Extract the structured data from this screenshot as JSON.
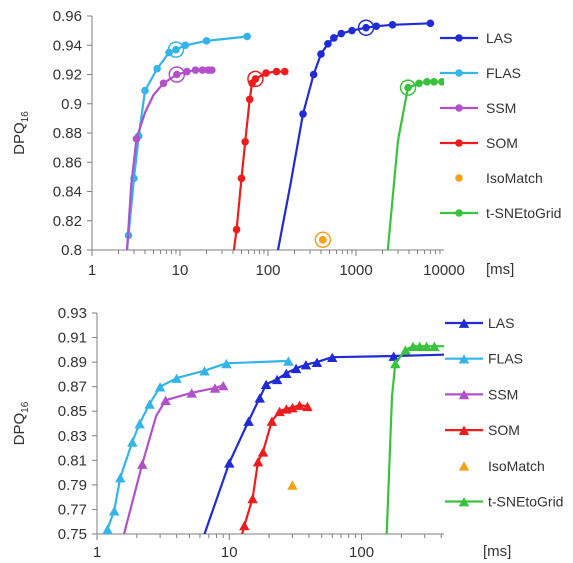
{
  "chart_data": [
    {
      "type": "line",
      "xscale": "log",
      "xlim": [
        1,
        10000
      ],
      "ylim": [
        0.8,
        0.96
      ],
      "xticks": [
        1,
        10,
        100,
        1000,
        10000
      ],
      "xtick_labels": [
        "1",
        "10",
        "100",
        "1000",
        "10000"
      ],
      "yticks": [
        0.8,
        0.82,
        0.84,
        0.86,
        0.88,
        0.9,
        0.92,
        0.94,
        0.96
      ],
      "ytick_labels": [
        "0.8",
        "0.82",
        "0.84",
        "0.86",
        "0.88",
        "0.9",
        "0.92",
        "0.94",
        "0.96"
      ],
      "ylabel_main": "DPQ",
      "ylabel_sub": "16",
      "xunit": "[ms]",
      "grid": false,
      "legend_position": "right",
      "marker": "circle",
      "series": [
        {
          "name": "LAS",
          "color": "#1f2bd6",
          "mark": "circle",
          "x": [
            250,
            330,
            400,
            480,
            560,
            680,
            900,
            1300,
            1700,
            2600,
            7000
          ],
          "y": [
            0.893,
            0.92,
            0.934,
            0.941,
            0.945,
            0.948,
            0.95,
            0.952,
            0.953,
            0.954,
            0.955
          ],
          "line_x": [
            130,
            180,
            250,
            330,
            400,
            480,
            560,
            680,
            900,
            1300,
            1700,
            2600,
            7000
          ],
          "line_y": [
            0.8,
            0.845,
            0.893,
            0.92,
            0.934,
            0.941,
            0.945,
            0.948,
            0.95,
            0.952,
            0.953,
            0.954,
            0.955
          ],
          "highlight": {
            "x": 1300,
            "y": 0.952
          }
        },
        {
          "name": "FLAS",
          "color": "#33b5ea",
          "mark": "circle",
          "x": [
            2.6,
            3.0,
            3.4,
            4.0,
            5.5,
            7.5,
            9.0,
            11.5,
            20,
            58
          ],
          "y": [
            0.81,
            0.849,
            0.878,
            0.909,
            0.924,
            0.935,
            0.937,
            0.94,
            0.943,
            0.946
          ],
          "line_x": [
            2.5,
            2.6,
            3.0,
            3.4,
            4.0,
            5.5,
            7.5,
            9.0,
            11.5,
            20,
            58
          ],
          "line_y": [
            0.8,
            0.81,
            0.849,
            0.878,
            0.909,
            0.924,
            0.935,
            0.937,
            0.94,
            0.943,
            0.946
          ],
          "highlight": {
            "x": 9.0,
            "y": 0.937
          }
        },
        {
          "name": "SSM",
          "color": "#b150c8",
          "mark": "circle",
          "x": [
            3.2,
            6.5,
            9.2,
            12,
            15,
            18,
            21,
            23
          ],
          "y": [
            0.876,
            0.914,
            0.92,
            0.922,
            0.923,
            0.923,
            0.923,
            0.923
          ],
          "line_x": [
            2.5,
            2.8,
            3.2,
            4.0,
            5.0,
            6.5,
            9.2,
            12,
            15,
            18,
            21,
            23
          ],
          "line_y": [
            0.8,
            0.845,
            0.876,
            0.894,
            0.906,
            0.914,
            0.92,
            0.922,
            0.923,
            0.923,
            0.923,
            0.923
          ],
          "highlight": {
            "x": 9.2,
            "y": 0.92
          }
        },
        {
          "name": "SOM",
          "color": "#ee1c1c",
          "mark": "circle",
          "x": [
            44,
            50,
            55,
            62,
            66,
            72,
            95,
            125,
            155
          ],
          "y": [
            0.814,
            0.849,
            0.874,
            0.903,
            0.914,
            0.917,
            0.921,
            0.922,
            0.922
          ],
          "line_x": [
            41,
            44,
            50,
            55,
            62,
            66,
            72,
            95,
            125,
            155
          ],
          "line_y": [
            0.8,
            0.814,
            0.849,
            0.874,
            0.903,
            0.914,
            0.917,
            0.921,
            0.922,
            0.922
          ],
          "highlight": {
            "x": 72,
            "y": 0.917
          }
        },
        {
          "name": "IsoMatch",
          "color": "#f5a11a",
          "mark": "circle",
          "x": [
            420
          ],
          "y": [
            0.807
          ],
          "line_x": [],
          "line_y": [],
          "highlight": {
            "x": 420,
            "y": 0.807
          }
        },
        {
          "name": "t-SNEtoGrid",
          "color": "#38c43a",
          "mark": "circle",
          "x": [
            3900,
            5200,
            6400,
            7700,
            9500
          ],
          "y": [
            0.911,
            0.914,
            0.915,
            0.915,
            0.915
          ],
          "line_x": [
            2300,
            3000,
            3900,
            5200,
            6400,
            7700,
            9500
          ],
          "line_y": [
            0.8,
            0.875,
            0.911,
            0.914,
            0.915,
            0.915,
            0.915
          ],
          "highlight": {
            "x": 3900,
            "y": 0.911
          }
        }
      ]
    },
    {
      "type": "line",
      "xscale": "log",
      "xlim": [
        1,
        420
      ],
      "ylim": [
        0.75,
        0.93
      ],
      "xticks": [
        1,
        10,
        100
      ],
      "xtick_labels": [
        "1",
        "10",
        "100"
      ],
      "yticks": [
        0.75,
        0.77,
        0.79,
        0.81,
        0.83,
        0.85,
        0.87,
        0.89,
        0.91,
        0.93
      ],
      "ytick_labels": [
        "0.75",
        "0.77",
        "0.79",
        "0.81",
        "0.83",
        "0.85",
        "0.87",
        "0.89",
        "0.91",
        "0.93"
      ],
      "ylabel_main": "DPQ",
      "ylabel_sub": "16",
      "xunit": "[ms]",
      "grid": false,
      "legend_position": "right",
      "marker": "triangle",
      "series": [
        {
          "name": "LAS",
          "color": "#1f2bd6",
          "mark": "triangle",
          "x": [
            10,
            14,
            17,
            19,
            23,
            27,
            32,
            38,
            46,
            60,
            175
          ],
          "y": [
            0.808,
            0.842,
            0.861,
            0.872,
            0.876,
            0.881,
            0.885,
            0.888,
            0.89,
            0.894,
            0.895
          ],
          "line_x": [
            6.5,
            8,
            10,
            14,
            17,
            19,
            23,
            27,
            32,
            38,
            46,
            60,
            175,
            420
          ],
          "line_y": [
            0.75,
            0.778,
            0.808,
            0.842,
            0.861,
            0.872,
            0.876,
            0.881,
            0.885,
            0.888,
            0.89,
            0.894,
            0.895,
            0.896
          ]
        },
        {
          "name": "FLAS",
          "color": "#33b5ea",
          "mark": "triangle",
          "x": [
            1.2,
            1.35,
            1.5,
            1.85,
            2.1,
            2.5,
            3.0,
            4.0,
            6.5,
            9.5,
            28
          ],
          "y": [
            0.754,
            0.769,
            0.796,
            0.825,
            0.84,
            0.856,
            0.87,
            0.877,
            0.883,
            0.889,
            0.891
          ],
          "line_x": [
            1.15,
            1.2,
            1.35,
            1.5,
            1.85,
            2.1,
            2.5,
            3.0,
            4.0,
            6.5,
            9.5,
            28
          ],
          "line_y": [
            0.75,
            0.754,
            0.769,
            0.796,
            0.825,
            0.84,
            0.856,
            0.87,
            0.877,
            0.883,
            0.889,
            0.891
          ]
        },
        {
          "name": "SSM",
          "color": "#b150c8",
          "mark": "triangle",
          "x": [
            2.2,
            3.3,
            5.2,
            7.8,
            9.0
          ],
          "y": [
            0.807,
            0.859,
            0.865,
            0.869,
            0.871
          ],
          "line_x": [
            1.6,
            2.2,
            2.8,
            3.3,
            5.2,
            7.8,
            9.0
          ],
          "line_y": [
            0.75,
            0.807,
            0.846,
            0.859,
            0.865,
            0.869,
            0.871
          ]
        },
        {
          "name": "SOM",
          "color": "#ee1c1c",
          "mark": "triangle",
          "x": [
            13,
            15,
            16.5,
            18,
            21,
            24,
            27,
            30,
            34,
            39
          ],
          "y": [
            0.757,
            0.779,
            0.809,
            0.817,
            0.842,
            0.85,
            0.852,
            0.853,
            0.855,
            0.854
          ],
          "line_x": [
            12.5,
            13,
            15,
            16.5,
            18,
            21,
            24,
            27,
            30,
            34,
            39
          ],
          "line_y": [
            0.75,
            0.757,
            0.779,
            0.809,
            0.817,
            0.842,
            0.85,
            0.852,
            0.853,
            0.855,
            0.854
          ]
        },
        {
          "name": "IsoMatch",
          "color": "#f5a11a",
          "mark": "triangle",
          "x": [
            30
          ],
          "y": [
            0.79
          ],
          "line_x": [],
          "line_y": []
        },
        {
          "name": "t-SNEtoGrid",
          "color": "#38c43a",
          "mark": "triangle",
          "x": [
            180,
            215,
            245,
            275,
            310,
            355
          ],
          "y": [
            0.889,
            0.9,
            0.903,
            0.903,
            0.903,
            0.903
          ],
          "line_x": [
            155,
            170,
            180,
            215,
            245,
            275,
            310,
            355,
            420
          ],
          "line_y": [
            0.75,
            0.862,
            0.889,
            0.9,
            0.903,
            0.903,
            0.903,
            0.903,
            0.903
          ]
        }
      ]
    }
  ]
}
